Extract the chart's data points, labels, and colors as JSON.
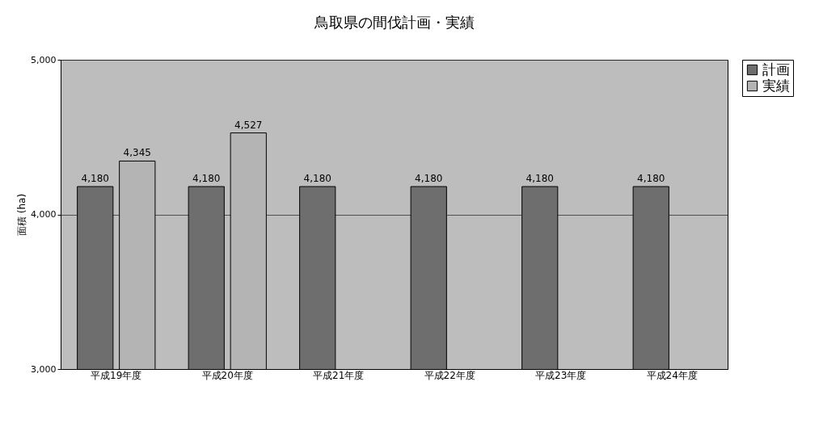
{
  "chart_data": {
    "type": "bar",
    "title": "鳥取県の間伐計画・実績",
    "ylabel": "面積 (ha)",
    "categories": [
      "平成19年度",
      "平成20年度",
      "平成21年度",
      "平成22年度",
      "平成23年度",
      "平成24年度"
    ],
    "series": [
      {
        "name": "計画",
        "color": "#6e6e6e",
        "values": [
          4180,
          4180,
          4180,
          4180,
          4180,
          4180
        ],
        "value_labels": [
          "4,180",
          "4,180",
          "4,180",
          "4,180",
          "4,180",
          "4,180"
        ]
      },
      {
        "name": "実績",
        "color": "#b4b4b4",
        "values": [
          4345,
          4527,
          null,
          null,
          null,
          null
        ],
        "value_labels": [
          "4,345",
          "4,527",
          null,
          null,
          null,
          null
        ]
      }
    ],
    "ylim": [
      3000,
      5000
    ],
    "yticks": [
      {
        "value": 3000,
        "label": "3,000"
      },
      {
        "value": 4000,
        "label": "4,000"
      },
      {
        "value": 5000,
        "label": "5,000"
      }
    ],
    "grid": "y",
    "legend": "right"
  }
}
